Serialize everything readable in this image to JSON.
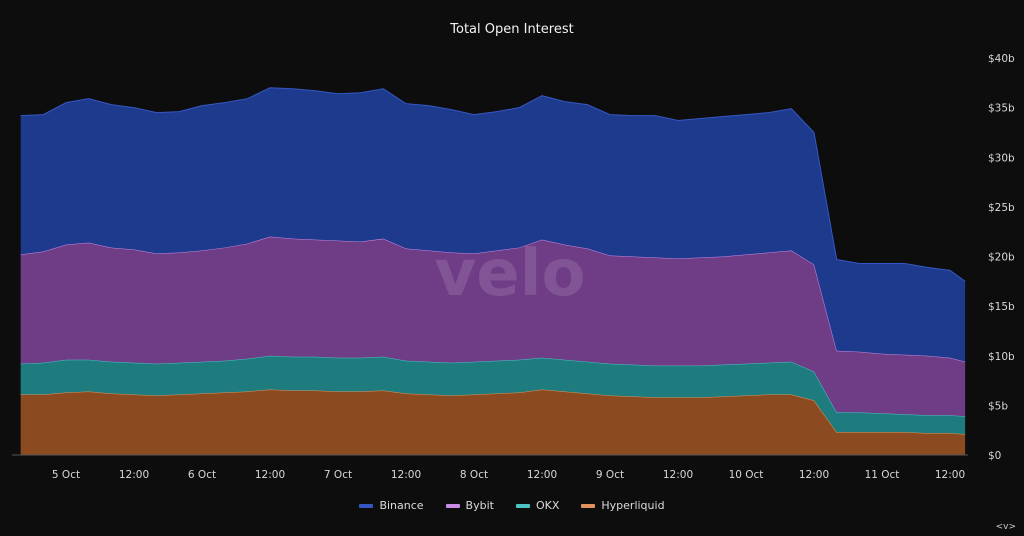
{
  "chart_data": {
    "type": "area",
    "stacked": true,
    "title": "Total Open Interest",
    "xlabel": "",
    "ylabel": "",
    "ylim": [
      0,
      40
    ],
    "y_unit": "billion USD",
    "y_ticks": [
      "$0",
      "$5b",
      "$10b",
      "$15b",
      "$20b",
      "$25b",
      "$30b",
      "$35b",
      "$40b"
    ],
    "y_axis_side": "right",
    "x_ticks": [
      "5 Oct",
      "12:00",
      "6 Oct",
      "12:00",
      "7 Oct",
      "12:00",
      "8 Oct",
      "12:00",
      "9 Oct",
      "12:00",
      "10 Oct",
      "12:00",
      "11 Oct",
      "12:00"
    ],
    "grid": false,
    "legend_position": "bottom",
    "x": [
      "4 Oct 16:00",
      "4 Oct 20:00",
      "5 Oct 00:00",
      "5 Oct 04:00",
      "5 Oct 08:00",
      "5 Oct 12:00",
      "5 Oct 16:00",
      "5 Oct 20:00",
      "6 Oct 00:00",
      "6 Oct 04:00",
      "6 Oct 08:00",
      "6 Oct 12:00",
      "6 Oct 16:00",
      "6 Oct 20:00",
      "7 Oct 00:00",
      "7 Oct 04:00",
      "7 Oct 08:00",
      "7 Oct 12:00",
      "7 Oct 16:00",
      "7 Oct 20:00",
      "8 Oct 00:00",
      "8 Oct 04:00",
      "8 Oct 08:00",
      "8 Oct 12:00",
      "8 Oct 16:00",
      "8 Oct 20:00",
      "9 Oct 00:00",
      "9 Oct 04:00",
      "9 Oct 08:00",
      "9 Oct 12:00",
      "9 Oct 16:00",
      "9 Oct 20:00",
      "10 Oct 00:00",
      "10 Oct 04:00",
      "10 Oct 08:00",
      "10 Oct 12:00",
      "10 Oct 16:00",
      "10 Oct 20:00",
      "11 Oct 00:00",
      "11 Oct 04:00",
      "11 Oct 08:00",
      "11 Oct 12:00",
      "11 Oct 14:40"
    ],
    "series": [
      {
        "name": "Hyperliquid",
        "color": "#8b4a1f",
        "line": "#e0925a",
        "values": [
          6.1,
          6.1,
          6.3,
          6.4,
          6.2,
          6.1,
          6.0,
          6.1,
          6.2,
          6.3,
          6.4,
          6.6,
          6.5,
          6.5,
          6.4,
          6.4,
          6.5,
          6.2,
          6.1,
          6.0,
          6.1,
          6.2,
          6.3,
          6.6,
          6.4,
          6.2,
          6.0,
          5.9,
          5.8,
          5.8,
          5.8,
          5.9,
          6.0,
          6.1,
          6.1,
          5.5,
          2.3,
          2.3,
          2.3,
          2.3,
          2.2,
          2.2,
          2.1
        ]
      },
      {
        "name": "OKX",
        "color": "#1e7b7e",
        "line": "#4cc4c4",
        "values": [
          3.1,
          3.2,
          3.3,
          3.2,
          3.2,
          3.2,
          3.2,
          3.2,
          3.2,
          3.2,
          3.3,
          3.4,
          3.4,
          3.4,
          3.4,
          3.4,
          3.4,
          3.3,
          3.3,
          3.3,
          3.3,
          3.3,
          3.3,
          3.2,
          3.2,
          3.2,
          3.2,
          3.2,
          3.2,
          3.2,
          3.2,
          3.2,
          3.2,
          3.2,
          3.3,
          2.9,
          2.0,
          2.0,
          1.9,
          1.8,
          1.8,
          1.8,
          1.8
        ]
      },
      {
        "name": "Bybit",
        "color": "#6f3c86",
        "line": "#c98ae6",
        "values": [
          11.0,
          11.2,
          11.6,
          11.8,
          11.5,
          11.4,
          11.1,
          11.1,
          11.2,
          11.4,
          11.6,
          12.0,
          11.9,
          11.8,
          11.8,
          11.7,
          11.9,
          11.3,
          11.2,
          11.1,
          10.9,
          11.1,
          11.3,
          11.9,
          11.6,
          11.4,
          10.9,
          10.9,
          10.9,
          10.8,
          10.9,
          10.9,
          11.0,
          11.1,
          11.2,
          10.8,
          6.2,
          6.1,
          6.0,
          6.0,
          6.0,
          5.8,
          5.5
        ]
      },
      {
        "name": "Binance",
        "color": "#1e3a8c",
        "line": "#3557c4",
        "values": [
          14.0,
          13.8,
          14.3,
          14.5,
          14.4,
          14.3,
          14.2,
          14.2,
          14.6,
          14.6,
          14.6,
          15.0,
          15.1,
          15.0,
          14.8,
          15.0,
          15.1,
          14.6,
          14.6,
          14.4,
          14.0,
          14.0,
          14.1,
          14.5,
          14.4,
          14.5,
          14.2,
          14.2,
          14.3,
          13.9,
          14.0,
          14.1,
          14.1,
          14.1,
          14.3,
          13.3,
          9.2,
          8.9,
          9.1,
          9.2,
          8.9,
          8.8,
          8.1
        ]
      }
    ],
    "legend": [
      "Binance",
      "Bybit",
      "OKX",
      "Hyperliquid"
    ]
  },
  "watermark": "velo",
  "corner_icon": "<v>"
}
